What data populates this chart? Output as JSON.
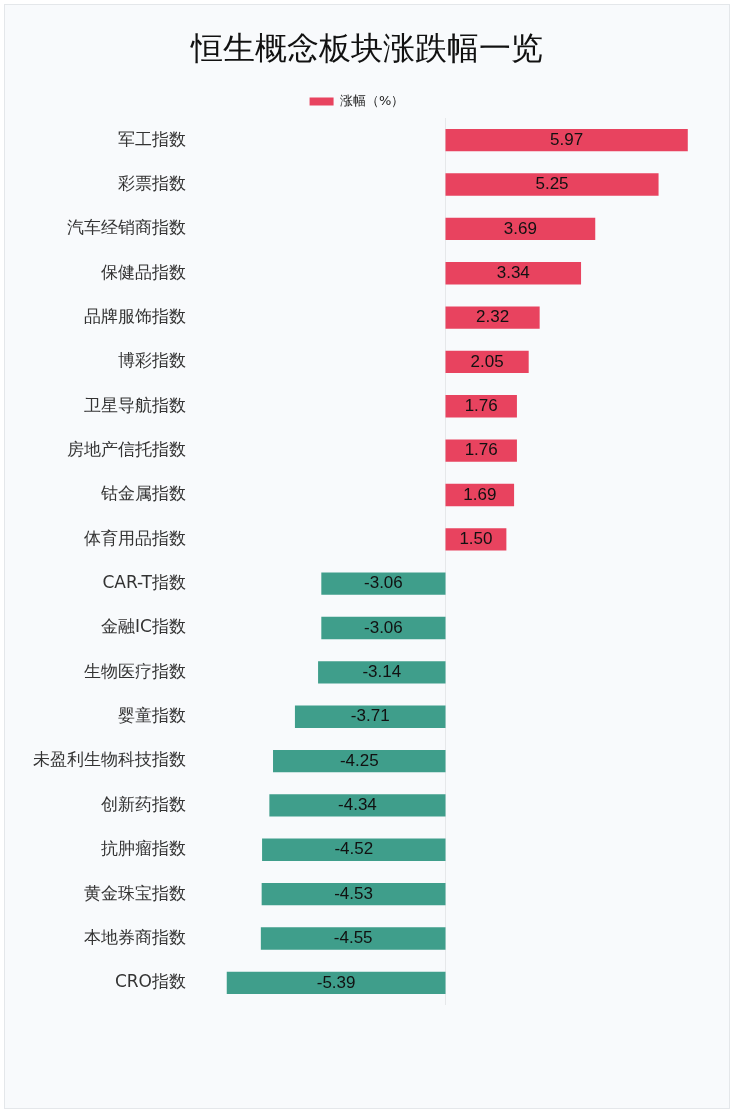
{
  "chart_data": {
    "type": "bar",
    "orientation": "horizontal",
    "title": "恒生概念板块涨跌幅一览",
    "categories": [
      "军工指数",
      "彩票指数",
      "汽车经销商指数",
      "保健品指数",
      "品牌服饰指数",
      "博彩指数",
      "卫星导航指数",
      "房地产信托指数",
      "钴金属指数",
      "体育用品指数",
      "CAR-T指数",
      "金融IC指数",
      "生物医疗指数",
      "婴童指数",
      "未盈利生物科技指数",
      "创新药指数",
      "抗肿瘤指数",
      "黄金珠宝指数",
      "本地券商指数",
      "CRO指数"
    ],
    "series": [
      {
        "name": "涨幅（%）",
        "color": "#e8435f",
        "values": [
          5.97,
          5.25,
          3.69,
          3.34,
          2.32,
          2.05,
          1.76,
          1.76,
          1.69,
          1.5,
          -3.06,
          -3.06,
          -3.14,
          -3.71,
          -4.25,
          -4.34,
          -4.52,
          -4.53,
          -4.55,
          -5.39
        ],
        "colors": [
          "#e8435f",
          "#e8435f",
          "#e8435f",
          "#e8435f",
          "#e8435f",
          "#e8435f",
          "#e8435f",
          "#e8435f",
          "#e8435f",
          "#e8435f",
          "#3f9e8b",
          "#3f9e8b",
          "#3f9e8b",
          "#3f9e8b",
          "#3f9e8b",
          "#3f9e8b",
          "#3f9e8b",
          "#3f9e8b",
          "#3f9e8b",
          "#3f9e8b"
        ],
        "value_labels": [
          "5.97",
          "5.25",
          "3.69",
          "3.34",
          "2.32",
          "2.05",
          "1.76",
          "1.76",
          "1.69",
          "1.50",
          "-3.06",
          "-3.06",
          "-3.14",
          "-3.71",
          "-4.25",
          "-4.34",
          "-4.52",
          "-4.53",
          "-4.55",
          "-5.39"
        ]
      }
    ],
    "legend": "top",
    "grid": false
  }
}
